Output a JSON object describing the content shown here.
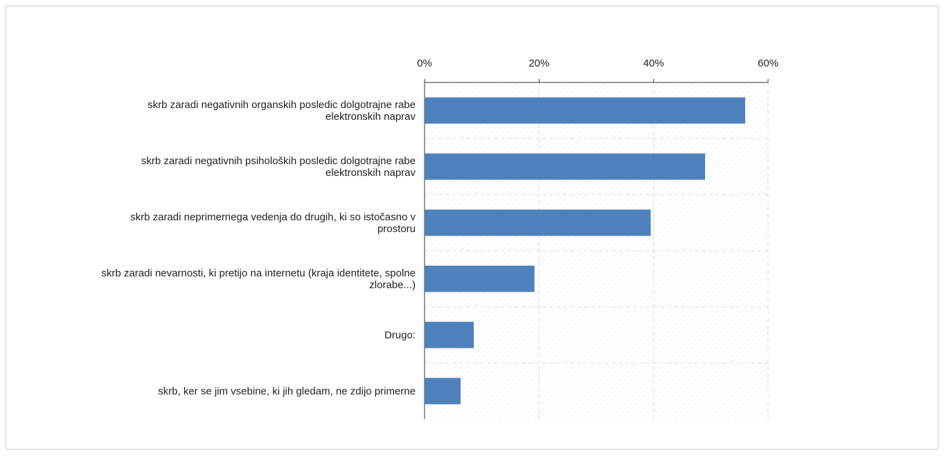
{
  "chart_data": {
    "type": "hbar",
    "categories": [
      "skrb zaradi negativnih organskih posledic dolgotrajne rabe elektronskih naprav",
      "skrb zaradi negativnih psiholoških posledic dolgotrajne rabe elektronskih naprav",
      "skrb zaradi neprimernega vedenja do drugih, ki so istočasno v prostoru",
      "skrb zaradi nevarnosti, ki pretijo na internetu (kraja identitete, spolne zlorabe...)",
      "Drugo:",
      "skrb, ker se jim vsebine, ki jih gledam, ne zdijo primerne"
    ],
    "values": [
      56,
      49,
      39.5,
      19.2,
      8.6,
      6.3
    ],
    "color": "#4f81bd",
    "xlim": [
      0,
      60
    ],
    "xticks": [
      {
        "value": 0,
        "label": "0%"
      },
      {
        "value": 20,
        "label": "20%"
      },
      {
        "value": 40,
        "label": "40%"
      },
      {
        "value": 60,
        "label": "60%"
      }
    ],
    "grid": true
  }
}
